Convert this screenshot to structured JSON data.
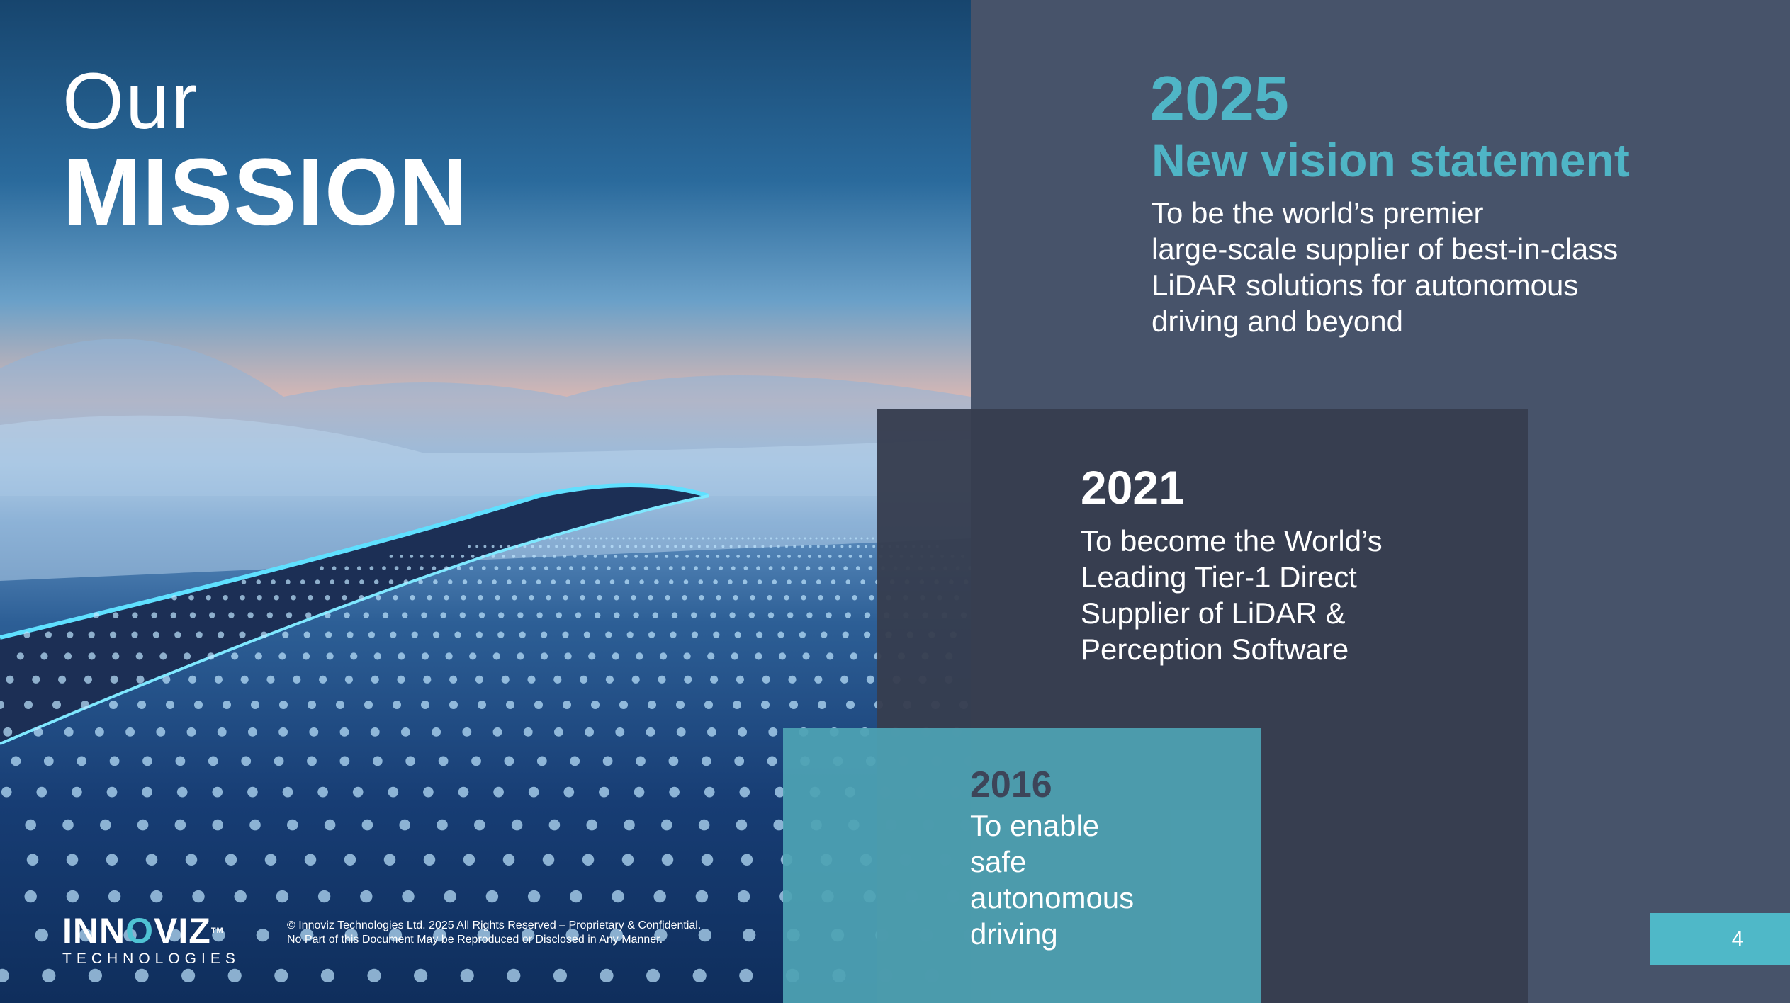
{
  "hero": {
    "title_line1": "Our",
    "title_line2": "MISSION"
  },
  "mission_2025": {
    "year": "2025",
    "heading": "New vision statement",
    "lines": [
      "To be the world’s premier",
      "large-scale supplier of best-in-class",
      "LiDAR solutions for autonomous",
      "driving and beyond"
    ]
  },
  "mission_2021": {
    "year": "2021",
    "lines": [
      "To become the World’s",
      "Leading Tier-1 Direct",
      "Supplier of LiDAR &",
      "Perception Software"
    ]
  },
  "mission_2016": {
    "year": "2016",
    "lines": [
      "To enable",
      "safe",
      "autonomous",
      "driving"
    ]
  },
  "logo": {
    "main_pre": "INN",
    "main_o": "O",
    "main_post": "VIZ",
    "tm": "TM",
    "sub": "TECHNOLOGIES"
  },
  "footer": {
    "line1": "© Innoviz Technologies Ltd. 2025 All Rights Reserved – Proprietary & Confidential.",
    "line2": "No Part of this Document May be Reproduced or Disclosed in Any Manner."
  },
  "page_number": "4",
  "colors": {
    "accent": "#4fb5c6",
    "panel": "#47536a",
    "box_2021": "#363d4f",
    "box_2016": "#4ea3b4"
  }
}
